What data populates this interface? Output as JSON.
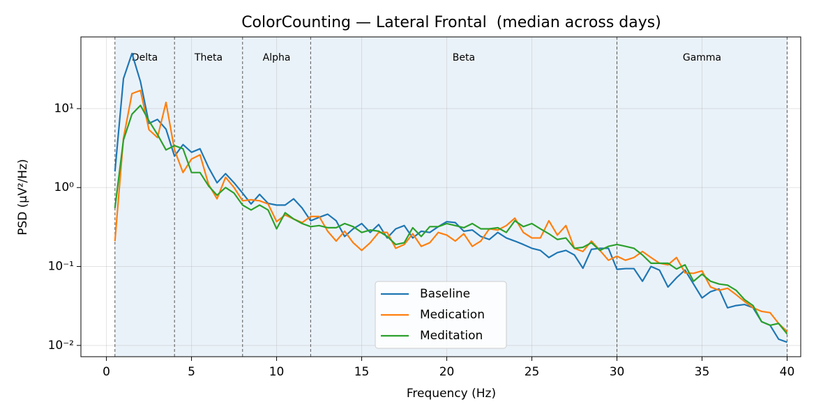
{
  "chart_data": {
    "type": "line",
    "title": "ColorCounting — Lateral Frontal  (median across days)",
    "xlabel": "Frequency (Hz)",
    "ylabel": "PSD (µV²/Hz)",
    "xlim": [
      -1.5,
      40.8
    ],
    "ylim": [
      0.0072,
      81
    ],
    "yscale": "log",
    "grid": true,
    "legend": "lower center",
    "xticks": [
      0,
      5,
      10,
      15,
      20,
      25,
      30,
      35,
      40
    ],
    "yticks": [
      {
        "value": 0.01,
        "label": "10⁻²"
      },
      {
        "value": 0.1,
        "label": "10⁻¹"
      },
      {
        "value": 1,
        "label": "10⁰"
      },
      {
        "value": 10,
        "label": "10¹"
      }
    ],
    "bands": [
      {
        "name": "Delta",
        "range": [
          0.5,
          4
        ]
      },
      {
        "name": "Theta",
        "range": [
          4,
          8
        ]
      },
      {
        "name": "Alpha",
        "range": [
          8,
          12
        ]
      },
      {
        "name": "Beta",
        "range": [
          12,
          30
        ]
      },
      {
        "name": "Gamma",
        "range": [
          30,
          40
        ]
      }
    ],
    "band_color": "#d6e6f4",
    "x": [
      0.5,
      1,
      1.5,
      2,
      2.5,
      3,
      3.5,
      4,
      4.5,
      5,
      5.5,
      6,
      6.5,
      7,
      7.5,
      8,
      8.5,
      9,
      9.5,
      10,
      10.5,
      11,
      11.5,
      12,
      12.5,
      13,
      13.5,
      14,
      14.5,
      15,
      15.5,
      16,
      16.5,
      17,
      17.5,
      18,
      18.5,
      19,
      19.5,
      20,
      20.5,
      21,
      21.5,
      22,
      22.5,
      23,
      23.5,
      24,
      24.5,
      25,
      25.5,
      26,
      26.5,
      27,
      27.5,
      28,
      28.5,
      29,
      29.5,
      30,
      30.5,
      31,
      31.5,
      32,
      32.5,
      33,
      33.5,
      34,
      34.5,
      35,
      35.5,
      36,
      36.5,
      37,
      37.5,
      38,
      38.5,
      39,
      39.5,
      40
    ],
    "series": [
      {
        "name": "Baseline",
        "color": "#1f77b4",
        "values": [
          1.6,
          24,
          50,
          22,
          6.5,
          7.3,
          5.5,
          2.5,
          3.5,
          2.8,
          3.1,
          1.8,
          1.15,
          1.5,
          1.15,
          0.85,
          0.62,
          0.82,
          0.63,
          0.6,
          0.6,
          0.72,
          0.55,
          0.38,
          0.42,
          0.46,
          0.38,
          0.24,
          0.3,
          0.35,
          0.27,
          0.34,
          0.23,
          0.3,
          0.33,
          0.23,
          0.28,
          0.27,
          0.32,
          0.37,
          0.36,
          0.28,
          0.29,
          0.24,
          0.22,
          0.27,
          0.23,
          0.21,
          0.19,
          0.17,
          0.16,
          0.13,
          0.15,
          0.16,
          0.14,
          0.095,
          0.165,
          0.17,
          0.17,
          0.092,
          0.094,
          0.094,
          0.065,
          0.1,
          0.09,
          0.055,
          0.072,
          0.09,
          0.06,
          0.04,
          0.048,
          0.052,
          0.03,
          0.032,
          0.033,
          0.03,
          0.02,
          0.018,
          0.012,
          0.011
        ]
      },
      {
        "name": "Medication",
        "color": "#ff7f0e",
        "values": [
          0.21,
          4.2,
          15.5,
          17,
          5.4,
          4.3,
          12,
          3.0,
          1.55,
          2.3,
          2.6,
          1.1,
          0.72,
          1.35,
          1.0,
          0.68,
          0.7,
          0.68,
          0.62,
          0.37,
          0.45,
          0.4,
          0.36,
          0.43,
          0.43,
          0.28,
          0.21,
          0.28,
          0.2,
          0.16,
          0.2,
          0.27,
          0.27,
          0.17,
          0.19,
          0.26,
          0.18,
          0.2,
          0.27,
          0.25,
          0.21,
          0.26,
          0.18,
          0.21,
          0.3,
          0.29,
          0.33,
          0.41,
          0.27,
          0.23,
          0.23,
          0.38,
          0.25,
          0.33,
          0.17,
          0.155,
          0.21,
          0.16,
          0.12,
          0.135,
          0.12,
          0.13,
          0.155,
          0.13,
          0.11,
          0.105,
          0.13,
          0.083,
          0.082,
          0.088,
          0.055,
          0.05,
          0.053,
          0.044,
          0.036,
          0.03,
          0.027,
          0.026,
          0.019,
          0.015
        ]
      },
      {
        "name": "Meditation",
        "color": "#2ca02c",
        "values": [
          0.55,
          4,
          8.5,
          11,
          7,
          4.7,
          3,
          3.4,
          3.1,
          1.55,
          1.55,
          1.05,
          0.8,
          1.0,
          0.85,
          0.6,
          0.52,
          0.6,
          0.52,
          0.3,
          0.48,
          0.4,
          0.35,
          0.32,
          0.33,
          0.31,
          0.31,
          0.35,
          0.32,
          0.27,
          0.29,
          0.28,
          0.24,
          0.19,
          0.2,
          0.31,
          0.24,
          0.32,
          0.32,
          0.35,
          0.33,
          0.31,
          0.35,
          0.3,
          0.3,
          0.31,
          0.27,
          0.38,
          0.32,
          0.35,
          0.3,
          0.26,
          0.22,
          0.23,
          0.17,
          0.175,
          0.2,
          0.16,
          0.18,
          0.19,
          0.18,
          0.17,
          0.14,
          0.11,
          0.11,
          0.11,
          0.093,
          0.105,
          0.065,
          0.08,
          0.065,
          0.06,
          0.058,
          0.05,
          0.038,
          0.032,
          0.02,
          0.018,
          0.019,
          0.014
        ]
      }
    ]
  }
}
